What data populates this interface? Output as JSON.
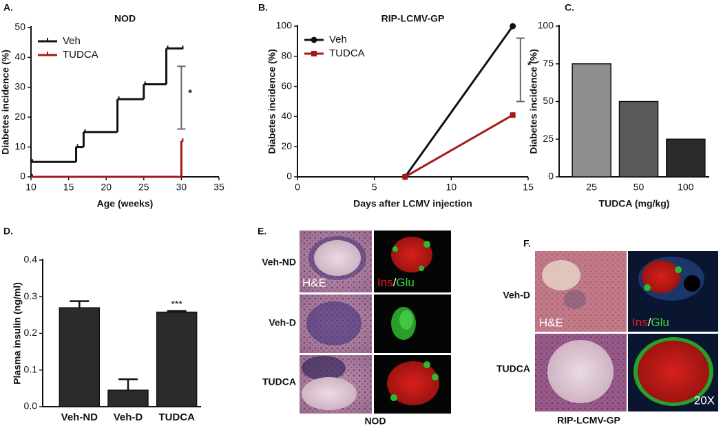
{
  "chart_data": [
    {
      "type": "step",
      "panel": "A.",
      "title": "NOD",
      "xlabel": "Age (weeks)",
      "ylabel": "Diabetes incidence (%)",
      "xlim": [
        10,
        35
      ],
      "xticks": [
        10,
        15,
        20,
        25,
        30,
        35
      ],
      "ylim": [
        0,
        50
      ],
      "yticks": [
        0,
        10,
        20,
        30,
        40,
        50
      ],
      "legend": "upper left",
      "series": [
        {
          "name": "Veh",
          "color": "#111111",
          "x": [
            10,
            16,
            17,
            21.5,
            25,
            28,
            30
          ],
          "values": [
            5,
            10,
            15,
            26,
            31,
            43,
            43
          ]
        },
        {
          "name": "TUDCA",
          "color": "#a31a1a",
          "x": [
            10,
            30
          ],
          "values": [
            0,
            12
          ]
        }
      ],
      "annotation": {
        "text": "*",
        "x": 30,
        "range": [
          16,
          37
        ]
      }
    },
    {
      "type": "line",
      "panel": "B.",
      "title": "RIP-LCMV-GP",
      "xlabel": "Days after LCMV injection",
      "ylabel": "Diabetes incidence (%)",
      "xlim": [
        0,
        15
      ],
      "xticks": [
        0,
        5,
        10,
        15
      ],
      "ylim": [
        0,
        100
      ],
      "yticks": [
        0,
        20,
        40,
        60,
        80,
        100
      ],
      "legend": "upper left",
      "series": [
        {
          "name": "Veh",
          "color": "#111111",
          "marker": "circle",
          "x": [
            7,
            14
          ],
          "values": [
            0,
            100
          ]
        },
        {
          "name": "TUDCA",
          "color": "#a31a1a",
          "marker": "square",
          "x": [
            7,
            14
          ],
          "values": [
            0,
            41
          ]
        }
      ],
      "annotation": {
        "text": "*",
        "x": 14.5,
        "range": [
          50,
          92
        ]
      }
    },
    {
      "type": "bar",
      "panel": "C.",
      "xlabel": "TUDCA (mg/kg)",
      "ylabel": "Diabetes incidence (%)",
      "categories": [
        "25",
        "50",
        "100"
      ],
      "values": [
        75,
        50,
        25
      ],
      "colors": [
        "#8e8e8e",
        "#5a5a5a",
        "#2b2b2b"
      ],
      "ylim": [
        0,
        100
      ],
      "yticks": [
        0,
        25,
        50,
        75,
        100
      ]
    },
    {
      "type": "bar",
      "panel": "D.",
      "ylabel": "Plasma insulin (ng/ml)",
      "categories": [
        "Veh-ND",
        "Veh-D",
        "TUDCA"
      ],
      "values": [
        0.27,
        0.045,
        0.258
      ],
      "errors": [
        0.018,
        0.03,
        0.003
      ],
      "colors": [
        "#2b2b2b",
        "#2b2b2b",
        "#2b2b2b"
      ],
      "ylim": [
        0,
        0.4
      ],
      "yticks": [
        {
          "value": 0,
          "label": "0.0"
        },
        0.1,
        0.2,
        0.3,
        0.4
      ],
      "annotation": {
        "text": "***",
        "category": "TUDCA"
      }
    }
  ],
  "images": [
    {
      "panel": "E.",
      "rows": [
        "Veh-ND",
        "Veh-D",
        "TUDCA"
      ],
      "he": "H&E",
      "ins": "Ins",
      "sep": "/",
      "glu": "Glu",
      "caption": "NOD"
    },
    {
      "panel": "F.",
      "rows": [
        "Veh-D",
        "TUDCA"
      ],
      "he": "H&E",
      "ins": "Ins",
      "sep": "/",
      "glu": "Glu",
      "caption": "RIP-LCMV-GP",
      "magnification": "20X"
    }
  ]
}
